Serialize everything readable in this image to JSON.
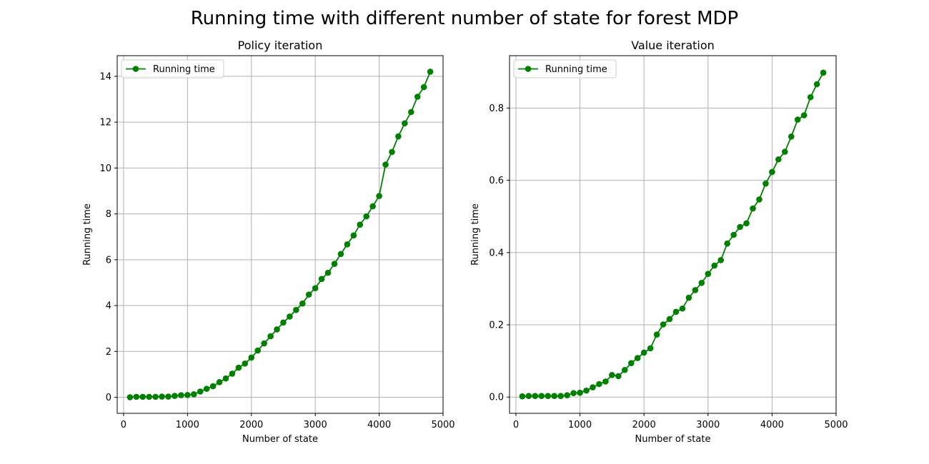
{
  "figure": {
    "title": "Running time with different number of state for forest MDP"
  },
  "chart_data": [
    {
      "type": "line",
      "title": "Policy iteration",
      "xlabel": "Number of state",
      "ylabel": "Running time",
      "xlim": [
        -100,
        5000
      ],
      "ylim": [
        -0.7,
        14.9
      ],
      "xticks": [
        0,
        1000,
        2000,
        3000,
        4000,
        5000
      ],
      "yticks": [
        0,
        2,
        4,
        6,
        8,
        10,
        12,
        14
      ],
      "grid": true,
      "legend": "upper-left",
      "color": "#008000",
      "marker": "circle",
      "series": [
        {
          "name": "Running time",
          "x": [
            100,
            200,
            300,
            400,
            500,
            600,
            700,
            800,
            900,
            1000,
            1100,
            1200,
            1300,
            1400,
            1500,
            1600,
            1700,
            1800,
            1900,
            2000,
            2100,
            2200,
            2300,
            2400,
            2500,
            2600,
            2700,
            2800,
            2900,
            3000,
            3100,
            3200,
            3300,
            3400,
            3500,
            3600,
            3700,
            3800,
            3900,
            4000,
            4100,
            4200,
            4300,
            4400,
            4500,
            4600,
            4700,
            4800
          ],
          "y": [
            0.0,
            0.02,
            0.02,
            0.02,
            0.02,
            0.03,
            0.03,
            0.06,
            0.09,
            0.1,
            0.13,
            0.25,
            0.37,
            0.48,
            0.66,
            0.82,
            1.03,
            1.29,
            1.47,
            1.73,
            2.04,
            2.35,
            2.66,
            2.96,
            3.26,
            3.52,
            3.81,
            4.09,
            4.48,
            4.76,
            5.16,
            5.43,
            5.82,
            6.25,
            6.67,
            7.06,
            7.53,
            7.89,
            8.33,
            8.78,
            10.15,
            10.7,
            11.38,
            11.95,
            12.44,
            13.11,
            13.53,
            14.2
          ]
        }
      ]
    },
    {
      "type": "line",
      "title": "Value iteration",
      "xlabel": "Number of state",
      "ylabel": "Running time",
      "xlim": [
        -100,
        5000
      ],
      "ylim": [
        -0.045,
        0.945
      ],
      "xticks": [
        0,
        1000,
        2000,
        3000,
        4000,
        5000
      ],
      "yticks": [
        0.0,
        0.2,
        0.4,
        0.6,
        0.8
      ],
      "grid": true,
      "legend": "upper-left",
      "color": "#008000",
      "marker": "circle",
      "series": [
        {
          "name": "Running time",
          "x": [
            100,
            200,
            300,
            400,
            500,
            600,
            700,
            800,
            900,
            1000,
            1100,
            1200,
            1300,
            1400,
            1500,
            1600,
            1700,
            1800,
            1900,
            2000,
            2100,
            2200,
            2300,
            2400,
            2500,
            2600,
            2700,
            2800,
            2900,
            3000,
            3100,
            3200,
            3300,
            3400,
            3500,
            3600,
            3700,
            3800,
            3900,
            4000,
            4100,
            4200,
            4300,
            4400,
            4500,
            4600,
            4700,
            4800
          ],
          "y": [
            0.002,
            0.003,
            0.003,
            0.003,
            0.003,
            0.003,
            0.003,
            0.005,
            0.011,
            0.012,
            0.018,
            0.027,
            0.036,
            0.043,
            0.061,
            0.058,
            0.075,
            0.094,
            0.108,
            0.123,
            0.135,
            0.173,
            0.201,
            0.216,
            0.236,
            0.245,
            0.275,
            0.296,
            0.316,
            0.341,
            0.364,
            0.379,
            0.425,
            0.449,
            0.471,
            0.481,
            0.522,
            0.547,
            0.591,
            0.623,
            0.658,
            0.679,
            0.721,
            0.768,
            0.78,
            0.83,
            0.866,
            0.898
          ]
        }
      ]
    }
  ]
}
